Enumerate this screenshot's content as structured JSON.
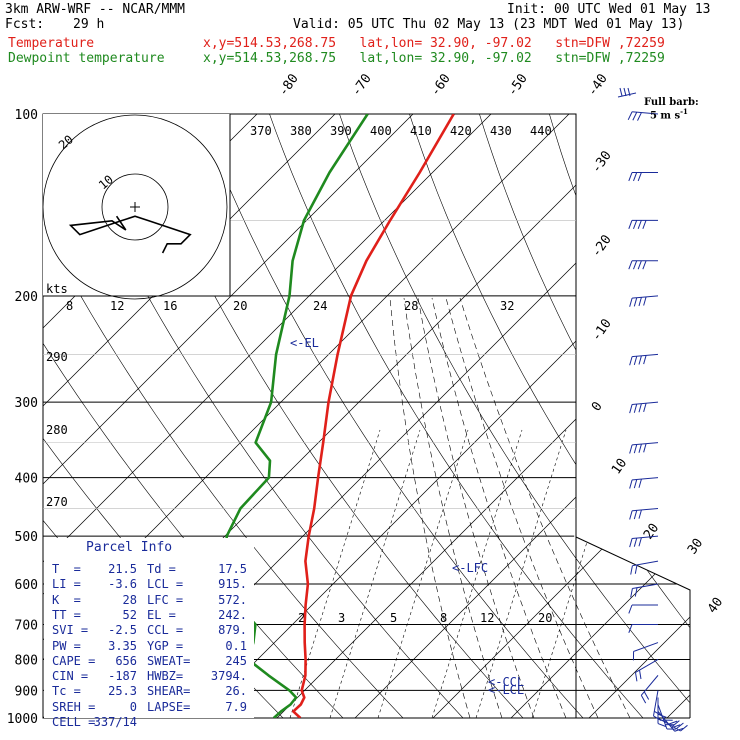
{
  "header": {
    "model": "3km ARW-WRF -- NCAR/MMM",
    "init": "Init: 00 UTC Wed 01 May 13",
    "fcst_label": "Fcst:",
    "fcst_value": "29 h",
    "valid": "Valid: 05 UTC Thu 02 May 13 (23 MDT Wed 01 May 13)",
    "temp_label": "Temperature",
    "temp_info": "x,y=514.53,268.75   lat,lon= 32.90, -97.02   stn=DFW ,72259",
    "dew_label": "Dewpoint temperature",
    "dew_info": "x,y=514.53,268.75   lat,lon= 32.90, -97.02   stn=DFW ,72259",
    "full_barb_1": "Full barb:",
    "full_barb_2": "5 m s",
    "full_barb_unit": "-1"
  },
  "colors": {
    "temperature": "#e0201a",
    "dewpoint": "#1f8a1f",
    "parcel": "#1a2b9a",
    "isobar": "#000000",
    "wind": "#1a2b9a"
  },
  "chart_data": {
    "type": "skew-t",
    "pressure_levels": [
      "100",
      "200",
      "300",
      "400",
      "500",
      "600",
      "700",
      "800",
      "900",
      "1000"
    ],
    "skewed_isotherm_labels": [
      "-80",
      "-70",
      "-60",
      "-50",
      "-40",
      "-30",
      "-20",
      "-10",
      "0",
      "10",
      "20",
      "30",
      "40"
    ],
    "theta_labels": [
      "370",
      "380",
      "390",
      "400",
      "410",
      "420",
      "430",
      "440"
    ],
    "theta_side_labels": [
      "290",
      "280",
      "270"
    ],
    "mixing_ratio_labels": [
      "2",
      "3",
      "5",
      "8",
      "12",
      "20"
    ],
    "hodograph_speed_labels": [
      "8",
      "12",
      "16",
      "20",
      "24",
      "28",
      "32"
    ],
    "hodograph_unit": "kts",
    "hodograph_rings": [
      "20",
      "10"
    ],
    "temperature_profile": [
      {
        "p": 1000,
        "t": 24
      },
      {
        "p": 975,
        "t": 21
      },
      {
        "p": 950,
        "t": 21.5
      },
      {
        "p": 925,
        "t": 21
      },
      {
        "p": 900,
        "t": 19
      },
      {
        "p": 850,
        "t": 17
      },
      {
        "p": 800,
        "t": 14
      },
      {
        "p": 750,
        "t": 10.5
      },
      {
        "p": 700,
        "t": 7
      },
      {
        "p": 650,
        "t": 3.5
      },
      {
        "p": 600,
        "t": 0
      },
      {
        "p": 550,
        "t": -5
      },
      {
        "p": 500,
        "t": -9
      },
      {
        "p": 450,
        "t": -13
      },
      {
        "p": 400,
        "t": -18
      },
      {
        "p": 350,
        "t": -23.5
      },
      {
        "p": 300,
        "t": -30
      },
      {
        "p": 250,
        "t": -37
      },
      {
        "p": 200,
        "t": -45
      },
      {
        "p": 175,
        "t": -48
      },
      {
        "p": 150,
        "t": -50
      },
      {
        "p": 125,
        "t": -52
      },
      {
        "p": 100,
        "t": -55
      }
    ],
    "dewpoint_profile": [
      {
        "p": 1000,
        "t": 17.5
      },
      {
        "p": 975,
        "t": 18
      },
      {
        "p": 950,
        "t": 19
      },
      {
        "p": 925,
        "t": 19
      },
      {
        "p": 900,
        "t": 16
      },
      {
        "p": 850,
        "t": 8
      },
      {
        "p": 800,
        "t": 0
      },
      {
        "p": 750,
        "t": -2
      },
      {
        "p": 700,
        "t": -5
      },
      {
        "p": 650,
        "t": -13
      },
      {
        "p": 600,
        "t": -20
      },
      {
        "p": 500,
        "t": -29
      },
      {
        "p": 450,
        "t": -31
      },
      {
        "p": 400,
        "t": -30
      },
      {
        "p": 375,
        "t": -33
      },
      {
        "p": 350,
        "t": -40
      },
      {
        "p": 300,
        "t": -44
      },
      {
        "p": 250,
        "t": -52
      },
      {
        "p": 200,
        "t": -60
      },
      {
        "p": 175,
        "t": -66
      },
      {
        "p": 150,
        "t": -71
      },
      {
        "p": 125,
        "t": -74
      },
      {
        "p": 100,
        "t": -76
      }
    ],
    "parcel_markers": [
      {
        "label": "LFC",
        "p": 572
      },
      {
        "label": "EL",
        "p": 242
      },
      {
        "label": "CCL",
        "p": 879
      },
      {
        "label": "LCL",
        "p": 915
      }
    ],
    "wind_barbs": [
      {
        "p": 1000,
        "dir": 120,
        "spd": 15
      },
      {
        "p": 975,
        "dir": 140,
        "spd": 15
      },
      {
        "p": 950,
        "dir": 160,
        "spd": 15
      },
      {
        "p": 925,
        "dir": 180,
        "spd": 15
      },
      {
        "p": 900,
        "dir": 190,
        "spd": 10
      },
      {
        "p": 850,
        "dir": 220,
        "spd": 10
      },
      {
        "p": 800,
        "dir": 240,
        "spd": 10
      },
      {
        "p": 750,
        "dir": 250,
        "spd": 5
      },
      {
        "p": 700,
        "dir": 270,
        "spd": 5
      },
      {
        "p": 650,
        "dir": 270,
        "spd": 5
      },
      {
        "p": 600,
        "dir": 260,
        "spd": 10
      },
      {
        "p": 550,
        "dir": 260,
        "spd": 10
      },
      {
        "p": 500,
        "dir": 265,
        "spd": 15
      },
      {
        "p": 450,
        "dir": 265,
        "spd": 15
      },
      {
        "p": 400,
        "dir": 265,
        "spd": 15
      },
      {
        "p": 350,
        "dir": 265,
        "spd": 20
      },
      {
        "p": 300,
        "dir": 265,
        "spd": 20
      },
      {
        "p": 250,
        "dir": 265,
        "spd": 20
      },
      {
        "p": 200,
        "dir": 265,
        "spd": 20
      },
      {
        "p": 175,
        "dir": 270,
        "spd": 20
      },
      {
        "p": 150,
        "dir": 270,
        "spd": 20
      },
      {
        "p": 125,
        "dir": 270,
        "spd": 15
      },
      {
        "p": 100,
        "dir": 275,
        "spd": 15
      }
    ],
    "hodograph_trace": [
      {
        "u": 6,
        "v": 10
      },
      {
        "u": 7,
        "v": 8
      },
      {
        "u": 10,
        "v": 8
      },
      {
        "u": 12,
        "v": 6
      },
      {
        "u": 6,
        "v": 4
      },
      {
        "u": 3,
        "v": 3
      },
      {
        "u": 0,
        "v": 2
      },
      {
        "u": -3,
        "v": 3
      },
      {
        "u": -6,
        "v": 4
      },
      {
        "u": -9,
        "v": 5
      },
      {
        "u": -12,
        "v": 6
      },
      {
        "u": -14,
        "v": 4
      },
      {
        "u": -5,
        "v": 3
      },
      {
        "u": -2,
        "v": 5
      },
      {
        "u": -4,
        "v": 2
      }
    ]
  },
  "parcel_info": {
    "title": "Parcel Info",
    "rows": [
      {
        "l1": "T  =",
        "v1": "21.5",
        "l2": "Td =",
        "v2": "17.5"
      },
      {
        "l1": "LI =",
        "v1": "-3.6",
        "l2": "LCL =",
        "v2": "915."
      },
      {
        "l1": "K  =",
        "v1": "28",
        "l2": "LFC =",
        "v2": "572."
      },
      {
        "l1": "TT =",
        "v1": "52",
        "l2": "EL =",
        "v2": "242."
      },
      {
        "l1": "SVI =",
        "v1": "-2.5",
        "l2": "CCL =",
        "v2": "879."
      },
      {
        "l1": "PW =",
        "v1": "3.35",
        "l2": "YGP =",
        "v2": "0.1"
      },
      {
        "l1": "CAPE =",
        "v1": "656",
        "l2": "SWEAT=",
        "v2": "245"
      },
      {
        "l1": "CIN =",
        "v1": "-187",
        "l2": "HWBZ=",
        "v2": "3794."
      },
      {
        "l1": "Tc =",
        "v1": "25.3",
        "l2": "SHEAR=",
        "v2": "26."
      },
      {
        "l1": "SREH =",
        "v1": "0",
        "l2": "LAPSE=",
        "v2": "7.9"
      },
      {
        "l1": "CELL =",
        "v1": "337/14",
        "l2": "",
        "v2": ""
      }
    ]
  }
}
